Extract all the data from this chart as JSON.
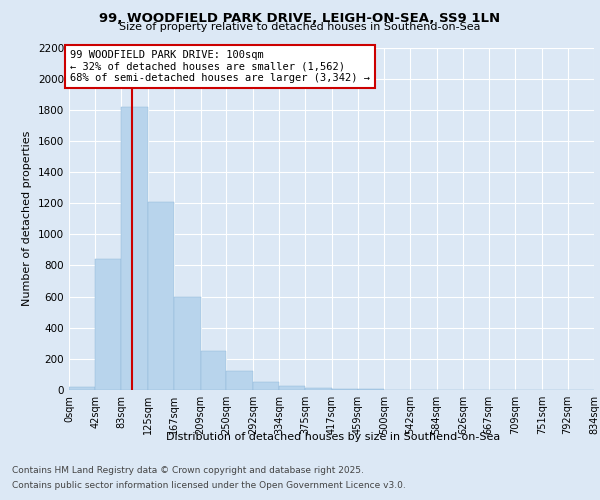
{
  "title_line1": "99, WOODFIELD PARK DRIVE, LEIGH-ON-SEA, SS9 1LN",
  "title_line2": "Size of property relative to detached houses in Southend-on-Sea",
  "xlabel": "Distribution of detached houses by size in Southend-on-Sea",
  "ylabel": "Number of detached properties",
  "annotation_title": "99 WOODFIELD PARK DRIVE: 100sqm",
  "annotation_line2": "← 32% of detached houses are smaller (1,562)",
  "annotation_line3": "68% of semi-detached houses are larger (3,342) →",
  "footer_line1": "Contains HM Land Registry data © Crown copyright and database right 2025.",
  "footer_line2": "Contains public sector information licensed under the Open Government Licence v3.0.",
  "bar_edges": [
    0,
    42,
    83,
    125,
    167,
    209,
    250,
    292,
    334,
    375,
    417,
    459,
    500,
    542,
    584,
    626,
    667,
    709,
    751,
    792,
    834
  ],
  "bar_heights": [
    20,
    840,
    1820,
    1210,
    600,
    250,
    125,
    50,
    25,
    12,
    8,
    5,
    3,
    2,
    2,
    1,
    1,
    0,
    0,
    0
  ],
  "bar_color": "#b8d4ec",
  "bar_edgecolor": "#8ab4d8",
  "vline_x": 100,
  "vline_color": "#cc0000",
  "annotation_box_color": "#cc0000",
  "ylim": [
    0,
    2200
  ],
  "yticks": [
    0,
    200,
    400,
    600,
    800,
    1000,
    1200,
    1400,
    1600,
    1800,
    2000,
    2200
  ],
  "bg_color": "#dce8f5",
  "plot_bg_color": "#dce8f5",
  "grid_color": "#ffffff"
}
